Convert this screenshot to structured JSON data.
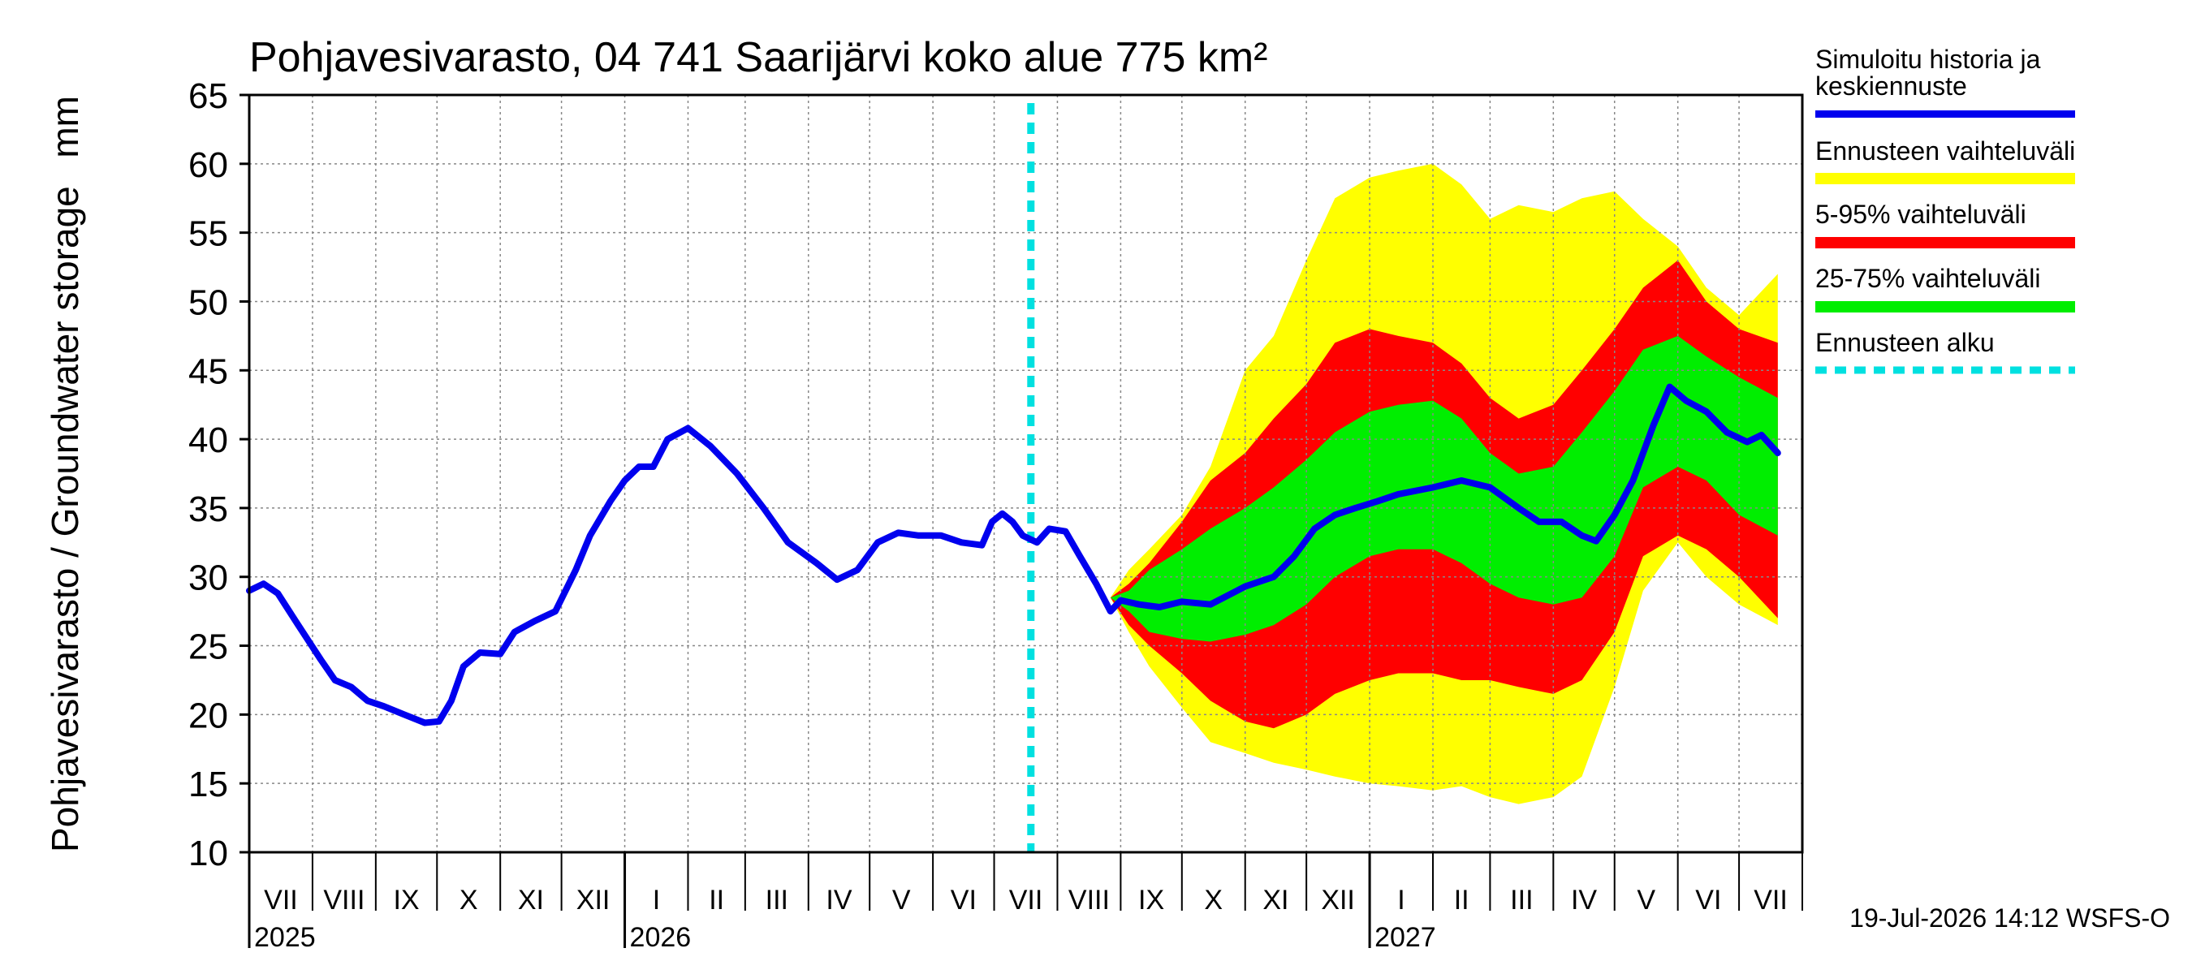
{
  "chart_data": {
    "type": "area",
    "title": "Pohjavesivarasto, 04 741 Saarijärvi koko alue 775 km²",
    "ylabel": "Pohjavesivarasto / Groundwater storage",
    "yunit": "mm",
    "ylim": [
      10,
      65
    ],
    "yticks": [
      10,
      15,
      20,
      25,
      30,
      35,
      40,
      45,
      50,
      55,
      60,
      65
    ],
    "xlim": [
      "2025-07-01",
      "2027-07-31"
    ],
    "grid": true,
    "legend_position": "right",
    "forecast_start": "2026-07-19",
    "months": [
      {
        "label": "VII",
        "start": "2025-07-01"
      },
      {
        "label": "VIII",
        "start": "2025-08-01"
      },
      {
        "label": "IX",
        "start": "2025-09-01"
      },
      {
        "label": "X",
        "start": "2025-10-01"
      },
      {
        "label": "XI",
        "start": "2025-11-01"
      },
      {
        "label": "XII",
        "start": "2025-12-01"
      },
      {
        "label": "I",
        "start": "2026-01-01"
      },
      {
        "label": "II",
        "start": "2026-02-01"
      },
      {
        "label": "III",
        "start": "2026-03-01"
      },
      {
        "label": "IV",
        "start": "2026-04-01"
      },
      {
        "label": "V",
        "start": "2026-05-01"
      },
      {
        "label": "VI",
        "start": "2026-06-01"
      },
      {
        "label": "VII",
        "start": "2026-07-01"
      },
      {
        "label": "VIII",
        "start": "2026-08-01"
      },
      {
        "label": "IX",
        "start": "2026-09-01"
      },
      {
        "label": "X",
        "start": "2026-10-01"
      },
      {
        "label": "XI",
        "start": "2026-11-01"
      },
      {
        "label": "XII",
        "start": "2026-12-01"
      },
      {
        "label": "I",
        "start": "2027-01-01"
      },
      {
        "label": "II",
        "start": "2027-02-01"
      },
      {
        "label": "III",
        "start": "2027-03-01"
      },
      {
        "label": "IV",
        "start": "2027-04-01"
      },
      {
        "label": "V",
        "start": "2027-05-01"
      },
      {
        "label": "VI",
        "start": "2027-06-01"
      },
      {
        "label": "VII",
        "start": "2027-07-01"
      }
    ],
    "years": [
      {
        "label": "2025",
        "date": "2025-07-01"
      },
      {
        "label": "2026",
        "date": "2026-01-01"
      },
      {
        "label": "2027",
        "date": "2027-01-01"
      }
    ],
    "series": [
      {
        "name": "Simuloitu historia ja keskiennuste",
        "color": "#0000ee",
        "points": [
          [
            "2025-07-01",
            29.0
          ],
          [
            "2025-07-08",
            29.5
          ],
          [
            "2025-07-15",
            28.8
          ],
          [
            "2025-07-25",
            26.5
          ],
          [
            "2025-08-05",
            24.0
          ],
          [
            "2025-08-12",
            22.5
          ],
          [
            "2025-08-20",
            22.0
          ],
          [
            "2025-08-28",
            21.0
          ],
          [
            "2025-09-05",
            20.6
          ],
          [
            "2025-09-15",
            20.0
          ],
          [
            "2025-09-25",
            19.4
          ],
          [
            "2025-10-02",
            19.5
          ],
          [
            "2025-10-08",
            21.0
          ],
          [
            "2025-10-14",
            23.5
          ],
          [
            "2025-10-22",
            24.5
          ],
          [
            "2025-11-01",
            24.4
          ],
          [
            "2025-11-08",
            26.0
          ],
          [
            "2025-11-18",
            26.8
          ],
          [
            "2025-11-28",
            27.5
          ],
          [
            "2025-12-08",
            30.5
          ],
          [
            "2025-12-15",
            33.0
          ],
          [
            "2025-12-25",
            35.5
          ],
          [
            "2026-01-01",
            37.0
          ],
          [
            "2026-01-08",
            38.0
          ],
          [
            "2026-01-15",
            38.0
          ],
          [
            "2026-01-22",
            40.0
          ],
          [
            "2026-02-01",
            40.8
          ],
          [
            "2026-02-12",
            39.5
          ],
          [
            "2026-02-25",
            37.5
          ],
          [
            "2026-03-10",
            35.0
          ],
          [
            "2026-03-22",
            32.5
          ],
          [
            "2026-04-05",
            31.0
          ],
          [
            "2026-04-15",
            29.8
          ],
          [
            "2026-04-25",
            30.5
          ],
          [
            "2026-05-05",
            32.5
          ],
          [
            "2026-05-15",
            33.2
          ],
          [
            "2026-05-25",
            33.0
          ],
          [
            "2026-06-05",
            33.0
          ],
          [
            "2026-06-15",
            32.5
          ],
          [
            "2026-06-25",
            32.3
          ],
          [
            "2026-06-30",
            34.0
          ],
          [
            "2026-07-05",
            34.6
          ],
          [
            "2026-07-10",
            34.0
          ],
          [
            "2026-07-15",
            33.0
          ],
          [
            "2026-07-22",
            32.5
          ],
          [
            "2026-07-28",
            33.5
          ],
          [
            "2026-08-05",
            33.3
          ],
          [
            "2026-08-12",
            31.5
          ],
          [
            "2026-08-20",
            29.5
          ],
          [
            "2026-08-27",
            27.5
          ],
          [
            "2026-09-01",
            28.3
          ],
          [
            "2026-09-10",
            28.0
          ],
          [
            "2026-09-20",
            27.8
          ],
          [
            "2026-10-01",
            28.2
          ],
          [
            "2026-10-15",
            28.0
          ],
          [
            "2026-11-01",
            29.3
          ],
          [
            "2026-11-15",
            30.0
          ],
          [
            "2026-11-25",
            31.5
          ],
          [
            "2026-12-05",
            33.5
          ],
          [
            "2026-12-15",
            34.5
          ],
          [
            "2026-12-25",
            35.0
          ],
          [
            "2027-01-05",
            35.5
          ],
          [
            "2027-01-15",
            36.0
          ],
          [
            "2027-02-01",
            36.5
          ],
          [
            "2027-02-15",
            37.0
          ],
          [
            "2027-03-01",
            36.5
          ],
          [
            "2027-03-15",
            35.0
          ],
          [
            "2027-03-25",
            34.0
          ],
          [
            "2027-04-05",
            34.0
          ],
          [
            "2027-04-15",
            33.0
          ],
          [
            "2027-04-22",
            32.6
          ],
          [
            "2027-05-01",
            34.5
          ],
          [
            "2027-05-10",
            37.0
          ],
          [
            "2027-05-20",
            41.0
          ],
          [
            "2027-05-28",
            43.8
          ],
          [
            "2027-06-05",
            42.8
          ],
          [
            "2027-06-15",
            42.0
          ],
          [
            "2027-06-25",
            40.5
          ],
          [
            "2027-07-05",
            39.8
          ],
          [
            "2027-07-12",
            40.3
          ],
          [
            "2027-07-20",
            39.0
          ]
        ]
      },
      {
        "name": "Ennusteen vaihteluväli",
        "color": "#ffff00",
        "points": [
          [
            "2026-08-27",
            28.5,
            28.5
          ],
          [
            "2026-09-05",
            30.5,
            26.0
          ],
          [
            "2026-09-15",
            32.0,
            23.5
          ],
          [
            "2026-10-01",
            34.5,
            20.5
          ],
          [
            "2026-10-15",
            38.0,
            18.0
          ],
          [
            "2026-11-01",
            45.0,
            17.2
          ],
          [
            "2026-11-15",
            47.5,
            16.5
          ],
          [
            "2026-12-01",
            53.0,
            16.0
          ],
          [
            "2026-12-15",
            57.5,
            15.5
          ],
          [
            "2027-01-01",
            59.0,
            15.0
          ],
          [
            "2027-01-15",
            59.5,
            14.8
          ],
          [
            "2027-02-01",
            60.0,
            14.5
          ],
          [
            "2027-02-15",
            58.5,
            14.8
          ],
          [
            "2027-03-01",
            56.0,
            14.0
          ],
          [
            "2027-03-15",
            57.0,
            13.5
          ],
          [
            "2027-04-01",
            56.5,
            14.0
          ],
          [
            "2027-04-15",
            57.5,
            15.5
          ],
          [
            "2027-05-01",
            58.0,
            22.0
          ],
          [
            "2027-05-15",
            56.0,
            29.0
          ],
          [
            "2027-06-01",
            54.0,
            32.5
          ],
          [
            "2027-06-15",
            51.0,
            30.0
          ],
          [
            "2027-07-01",
            49.0,
            28.0
          ],
          [
            "2027-07-20",
            52.0,
            26.5
          ]
        ]
      },
      {
        "name": "5-95% vaihteluväli",
        "color": "#ff0000",
        "points": [
          [
            "2026-08-27",
            28.5,
            28.5
          ],
          [
            "2026-09-05",
            29.5,
            26.5
          ],
          [
            "2026-09-15",
            31.0,
            25.0
          ],
          [
            "2026-10-01",
            34.0,
            23.0
          ],
          [
            "2026-10-15",
            37.0,
            21.0
          ],
          [
            "2026-11-01",
            39.0,
            19.5
          ],
          [
            "2026-11-15",
            41.5,
            19.0
          ],
          [
            "2026-12-01",
            44.0,
            20.0
          ],
          [
            "2026-12-15",
            47.0,
            21.5
          ],
          [
            "2027-01-01",
            48.0,
            22.5
          ],
          [
            "2027-01-15",
            47.5,
            23.0
          ],
          [
            "2027-02-01",
            47.0,
            23.0
          ],
          [
            "2027-02-15",
            45.5,
            22.5
          ],
          [
            "2027-03-01",
            43.0,
            22.5
          ],
          [
            "2027-03-15",
            41.5,
            22.0
          ],
          [
            "2027-04-01",
            42.5,
            21.5
          ],
          [
            "2027-04-15",
            45.0,
            22.5
          ],
          [
            "2027-05-01",
            48.0,
            26.0
          ],
          [
            "2027-05-15",
            51.0,
            31.5
          ],
          [
            "2027-06-01",
            53.0,
            33.0
          ],
          [
            "2027-06-15",
            50.0,
            32.0
          ],
          [
            "2027-07-01",
            48.0,
            30.0
          ],
          [
            "2027-07-20",
            47.0,
            27.0
          ]
        ]
      },
      {
        "name": "25-75% vaihteluväli",
        "color": "#00ee00",
        "points": [
          [
            "2026-08-27",
            28.5,
            28.5
          ],
          [
            "2026-09-05",
            29.0,
            27.5
          ],
          [
            "2026-09-15",
            30.5,
            26.0
          ],
          [
            "2026-10-01",
            32.0,
            25.5
          ],
          [
            "2026-10-15",
            33.5,
            25.3
          ],
          [
            "2026-11-01",
            35.0,
            25.8
          ],
          [
            "2026-11-15",
            36.5,
            26.5
          ],
          [
            "2026-12-01",
            38.5,
            28.0
          ],
          [
            "2026-12-15",
            40.5,
            30.0
          ],
          [
            "2027-01-01",
            42.0,
            31.5
          ],
          [
            "2027-01-15",
            42.5,
            32.0
          ],
          [
            "2027-02-01",
            42.8,
            32.0
          ],
          [
            "2027-02-15",
            41.5,
            31.0
          ],
          [
            "2027-03-01",
            39.0,
            29.5
          ],
          [
            "2027-03-15",
            37.5,
            28.5
          ],
          [
            "2027-04-01",
            38.0,
            28.0
          ],
          [
            "2027-04-15",
            40.5,
            28.5
          ],
          [
            "2027-05-01",
            43.5,
            31.5
          ],
          [
            "2027-05-15",
            46.5,
            36.5
          ],
          [
            "2027-06-01",
            47.5,
            38.0
          ],
          [
            "2027-06-15",
            46.0,
            37.0
          ],
          [
            "2027-07-01",
            44.5,
            34.5
          ],
          [
            "2027-07-20",
            43.0,
            33.0
          ]
        ]
      },
      {
        "name": "Ennusteen alku",
        "color": "#00e0e0"
      }
    ]
  },
  "legend": {
    "sim_line1": "Simuloitu historia ja",
    "sim_line2": "keskiennuste",
    "range": "Ennusteen vaihteluväli",
    "p5_95": "5-95% vaihteluväli",
    "p25_75": "25-75% vaihteluväli",
    "start": "Ennusteen alku"
  },
  "footer": "19-Jul-2026 14:12 WSFS-O"
}
